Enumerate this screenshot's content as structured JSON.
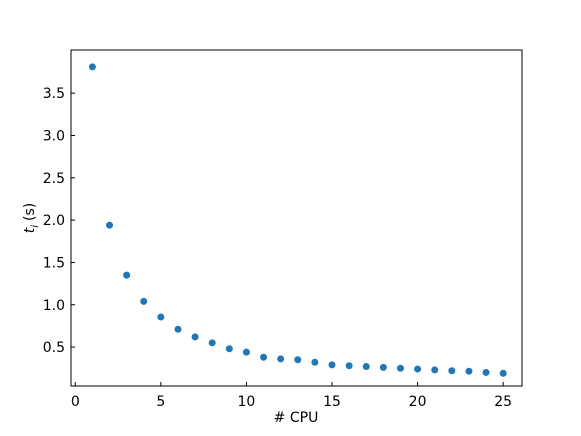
{
  "chart_data": {
    "type": "scatter",
    "xlabel": "# CPU",
    "ylabel": [
      "t",
      "i",
      "(s)"
    ],
    "x": [
      1,
      2,
      3,
      4,
      5,
      6,
      7,
      8,
      9,
      10,
      11,
      12,
      13,
      14,
      15,
      16,
      17,
      18,
      19,
      20,
      21,
      22,
      23,
      24,
      25
    ],
    "series": [
      {
        "color": "#1f77b4",
        "values": [
          3.81,
          1.94,
          1.35,
          1.04,
          0.855,
          0.71,
          0.62,
          0.55,
          0.48,
          0.44,
          0.38,
          0.36,
          0.35,
          0.32,
          0.29,
          0.28,
          0.27,
          0.26,
          0.25,
          0.24,
          0.23,
          0.22,
          0.215,
          0.2,
          0.19
        ]
      }
    ],
    "xlim": [
      -0.25,
      26.1
    ],
    "ylim": [
      0.04,
      4.01
    ],
    "xticks": [
      0,
      5,
      10,
      15,
      20,
      25
    ],
    "yticks": [
      {
        "value": 0.5,
        "label": "0.5"
      },
      {
        "value": 1.0,
        "label": "1.0"
      },
      {
        "value": 1.5,
        "label": "1.5"
      },
      {
        "value": 2.0,
        "label": "2.0"
      },
      {
        "value": 2.5,
        "label": "2.5"
      },
      {
        "value": 3.0,
        "label": "3.0"
      },
      {
        "value": 3.5,
        "label": "3.5"
      }
    ],
    "tick_direction": "in",
    "grid": false
  }
}
